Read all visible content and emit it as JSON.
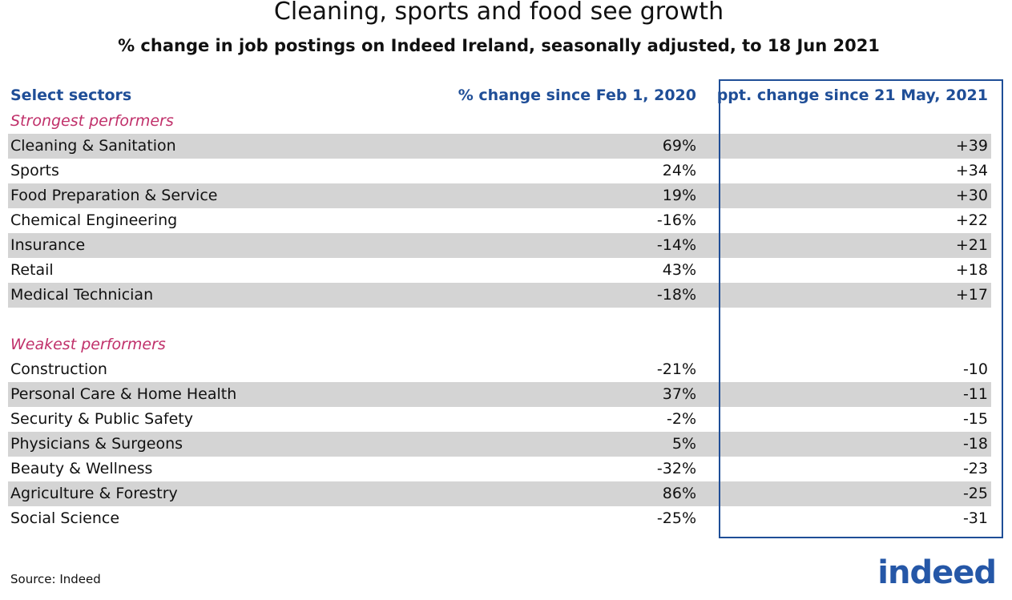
{
  "header": {
    "title": "Cleaning, sports and food see growth",
    "subtitle": "% change in job postings on Indeed Ireland, seasonally adjusted, to 18 Jun 2021"
  },
  "table": {
    "columns": [
      "Select sectors",
      "% change since Feb 1, 2020",
      "ppt. change since 21 May, 2021"
    ],
    "sections": [
      {
        "label": "Strongest performers",
        "rows": [
          [
            "Cleaning & Sanitation",
            "69%",
            "+39"
          ],
          [
            "Sports",
            "24%",
            "+34"
          ],
          [
            "Food Preparation & Service",
            "19%",
            "+30"
          ],
          [
            "Chemical Engineering",
            "-16%",
            "+22"
          ],
          [
            "Insurance",
            "-14%",
            "+21"
          ],
          [
            "Retail",
            "43%",
            "+18"
          ],
          [
            "Medical Technician",
            "-18%",
            "+17"
          ]
        ]
      },
      {
        "label": "Weakest performers",
        "rows": [
          [
            "Construction",
            "-21%",
            "-10"
          ],
          [
            "Personal Care & Home Health",
            "37%",
            "-11"
          ],
          [
            "Security & Public Safety",
            "-2%",
            "-15"
          ],
          [
            "Physicians & Surgeons",
            "5%",
            "-18"
          ],
          [
            "Beauty & Wellness",
            "-32%",
            "-23"
          ],
          [
            "Agriculture & Forestry",
            "86%",
            "-25"
          ],
          [
            "Social Science",
            "-25%",
            "-31"
          ]
        ]
      }
    ]
  },
  "footer": {
    "source": "Source: Indeed",
    "logo": "indeed"
  }
}
